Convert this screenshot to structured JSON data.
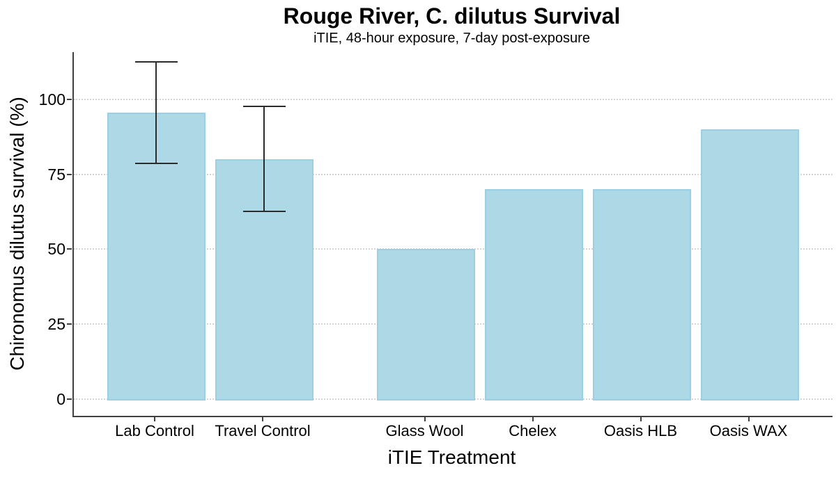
{
  "chart_data": {
    "type": "bar",
    "title": "Rouge River, C. dilutus Survival",
    "subtitle": "iTIE, 48-hour exposure, 7-day post-exposure",
    "xlabel": "iTIE Treatment",
    "ylabel": "Chironomus dilutus survival (%)",
    "categories": [
      "Lab Control",
      "Travel Control",
      "Glass Wool",
      "Chelex",
      "Oasis HLB",
      "Oasis WAX"
    ],
    "values": [
      95.5,
      80,
      50,
      70,
      70,
      90
    ],
    "error_bars": [
      {
        "low": 78.5,
        "high": 112.5
      },
      {
        "low": 62.5,
        "high": 97.5
      },
      null,
      null,
      null,
      null
    ],
    "yticks": [
      0,
      25,
      50,
      75,
      100
    ],
    "ylim": [
      0,
      116
    ],
    "x_slots": [
      0,
      1,
      2.5,
      3.5,
      4.5,
      5.5
    ],
    "grid": "horizontal-dotted",
    "legend": "none",
    "colors": {
      "bar_fill": "#ADD8E6",
      "bar_border": "#9ACFE4",
      "error_bar": "#2b2b2b",
      "gridline": "#d5d5d5",
      "axis_line": "#404040",
      "text": "#000000"
    }
  }
}
